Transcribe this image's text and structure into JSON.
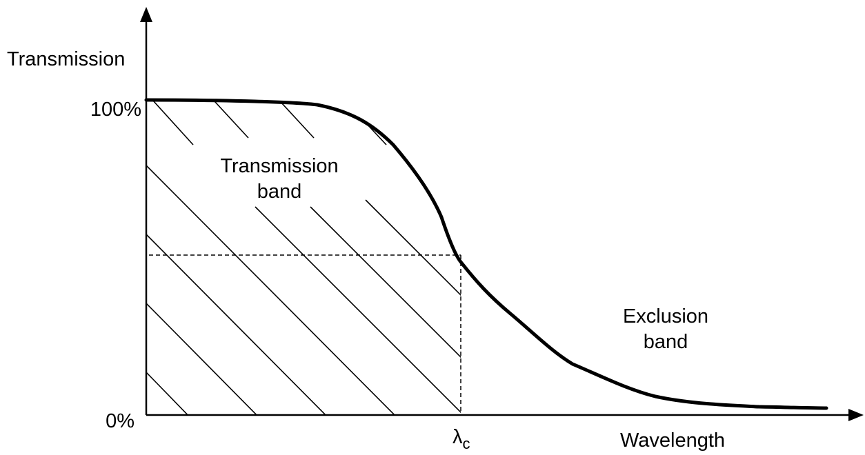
{
  "diagram": {
    "y_axis_label": "Transmission",
    "x_axis_label": "Wavelength",
    "tick_top": "100%",
    "tick_bottom": "0%",
    "cutoff_symbol": "λ",
    "cutoff_subscript": "c",
    "transmission_band": {
      "line1": "Transmission",
      "line2": "band"
    },
    "exclusion_band": {
      "line1": "Exclusion",
      "line2": "band"
    }
  },
  "colors": {
    "ink": "#000000",
    "background": "#ffffff"
  }
}
